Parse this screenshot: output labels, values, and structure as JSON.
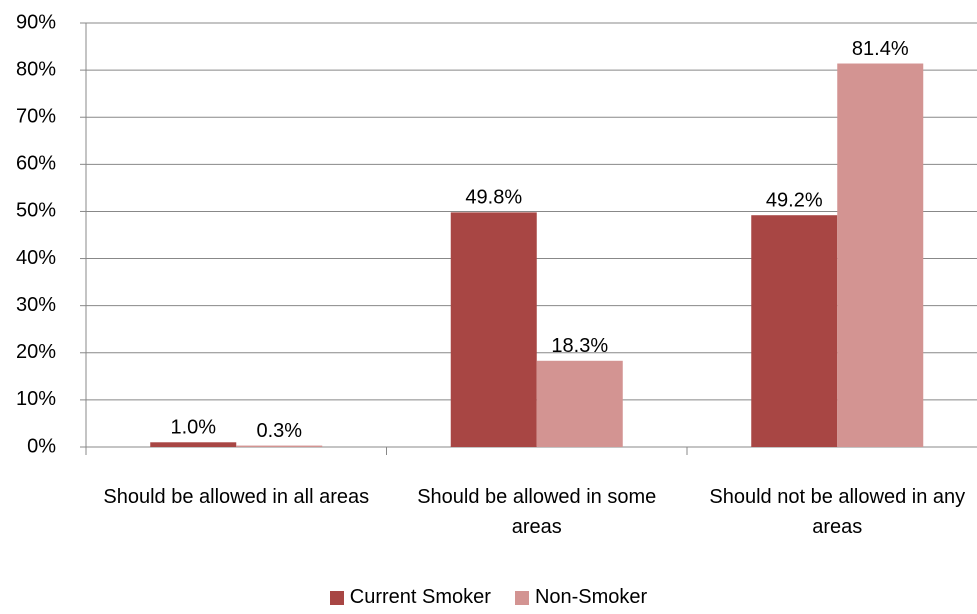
{
  "chart_data": {
    "type": "bar",
    "categories": [
      "Should be allowed in all areas",
      "Should be allowed in some areas",
      "Should not be allowed in any areas"
    ],
    "series": [
      {
        "name": "Current Smoker",
        "color": "#a84644",
        "values": [
          1.0,
          49.8,
          49.2
        ],
        "value_labels": [
          "1.0%",
          "49.8%",
          "49.2%"
        ]
      },
      {
        "name": "Non-Smoker",
        "color": "#d39492",
        "values": [
          0.3,
          18.3,
          81.4
        ],
        "value_labels": [
          "0.3%",
          "18.3%",
          "81.4%"
        ]
      }
    ],
    "ylim": [
      0,
      90
    ],
    "yticks": [
      {
        "value": 0,
        "label": "0%"
      },
      {
        "value": 10,
        "label": "10%"
      },
      {
        "value": 20,
        "label": "20%"
      },
      {
        "value": 30,
        "label": "30%"
      },
      {
        "value": 40,
        "label": "40%"
      },
      {
        "value": 50,
        "label": "50%"
      },
      {
        "value": 60,
        "label": "60%"
      },
      {
        "value": 70,
        "label": "70%"
      },
      {
        "value": 80,
        "label": "80%"
      },
      {
        "value": 90,
        "label": "90%"
      }
    ],
    "grid": true,
    "legend": "bottom"
  }
}
